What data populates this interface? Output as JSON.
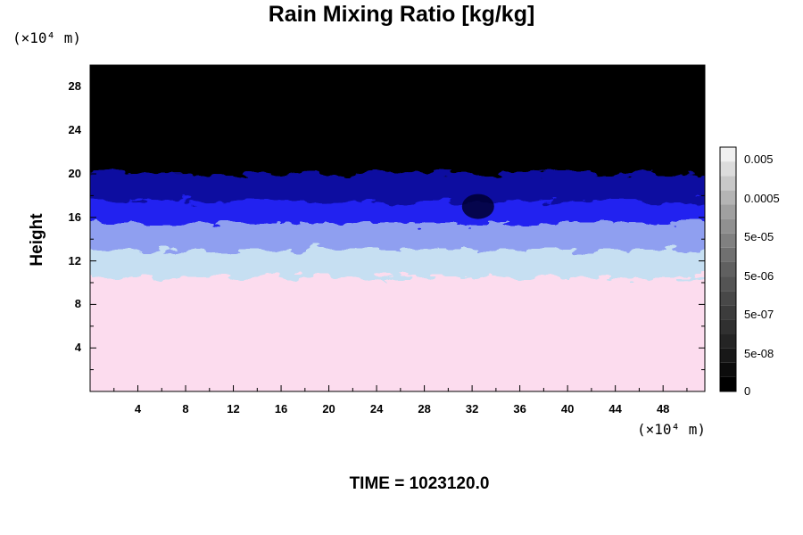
{
  "header": {
    "title": "Rain Mixing Ratio [kg/kg]",
    "y_unit": "(×10⁴ m)",
    "x_unit": "(×10⁴ m)"
  },
  "footer": {
    "time_label": "TIME = 1023120.0"
  },
  "chart_data": {
    "type": "heatmap",
    "title": "Rain Mixing Ratio [kg/kg]",
    "xlabel": "",
    "ylabel": "Height",
    "x_unit": "(×10⁴ m)",
    "y_unit": "(×10⁴ m)",
    "xlim": [
      0,
      51.5
    ],
    "ylim": [
      0,
      30
    ],
    "x_ticks": [
      4,
      8,
      12,
      16,
      20,
      24,
      28,
      32,
      36,
      40,
      44,
      48
    ],
    "y_ticks": [
      4,
      8,
      12,
      16,
      20,
      24,
      28
    ],
    "x_tick_labels": [
      "4",
      "8",
      "12",
      "16",
      "20",
      "24",
      "28",
      "32",
      "36",
      "40",
      "44",
      "48"
    ],
    "y_tick_labels": [
      "4",
      "8",
      "12",
      "16",
      "20",
      "24",
      "28"
    ],
    "field_bands": [
      {
        "from_height": 0,
        "to_height": 10,
        "color": "#fcdcee"
      },
      {
        "from_height": 10,
        "to_height": 12.5,
        "color": "#c6dff2"
      },
      {
        "from_height": 12.5,
        "to_height": 15,
        "color": "#8f9ff0"
      },
      {
        "from_height": 15,
        "to_height": 17,
        "color": "#2020f0"
      },
      {
        "from_height": 17,
        "to_height": 19.5,
        "color": "#0a0aa0"
      },
      {
        "from_height": 19.5,
        "to_height": 30,
        "color": "#000000"
      }
    ],
    "colorbar": {
      "tick_labels": [
        "0.005",
        "0.0005",
        "5e-05",
        "5e-06",
        "5e-07",
        "5e-08",
        "0"
      ],
      "tick_values": [
        0.005,
        0.0005,
        5e-05,
        5e-06,
        5e-07,
        5e-08,
        0
      ],
      "levels": 17,
      "colors": [
        "#000000",
        "#0c0c0c",
        "#181818",
        "#242424",
        "#303030",
        "#3c3c3c",
        "#484848",
        "#545454",
        "#606060",
        "#707070",
        "#808080",
        "#909090",
        "#a0a0a0",
        "#b4b4b4",
        "#c8c8c8",
        "#dcdcdc",
        "#f0f0f0"
      ]
    }
  }
}
